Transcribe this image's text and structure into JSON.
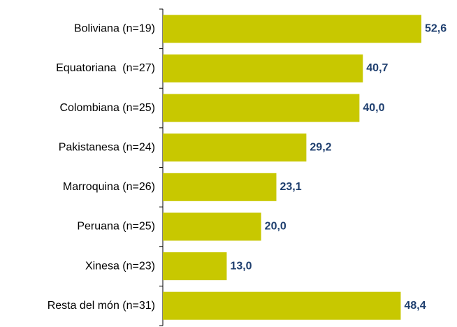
{
  "chart_data": {
    "type": "bar",
    "orientation": "horizontal",
    "categories": [
      "Boliviana (n=19)",
      "Equatoriana  (n=27)",
      "Colombiana (n=25)",
      "Pakistanesa (n=24)",
      "Marroquina (n=26)",
      "Peruana (n=25)",
      "Xinesa (n=23)",
      "Resta del món (n=31)"
    ],
    "values": [
      52.6,
      40.7,
      40.0,
      29.2,
      23.1,
      20.0,
      13.0,
      48.4
    ],
    "value_labels": [
      "52,6",
      "40,7",
      "40,0",
      "29,2",
      "23,1",
      "20,0",
      "13,0",
      "48,4"
    ],
    "color": "#c8c800"
  }
}
